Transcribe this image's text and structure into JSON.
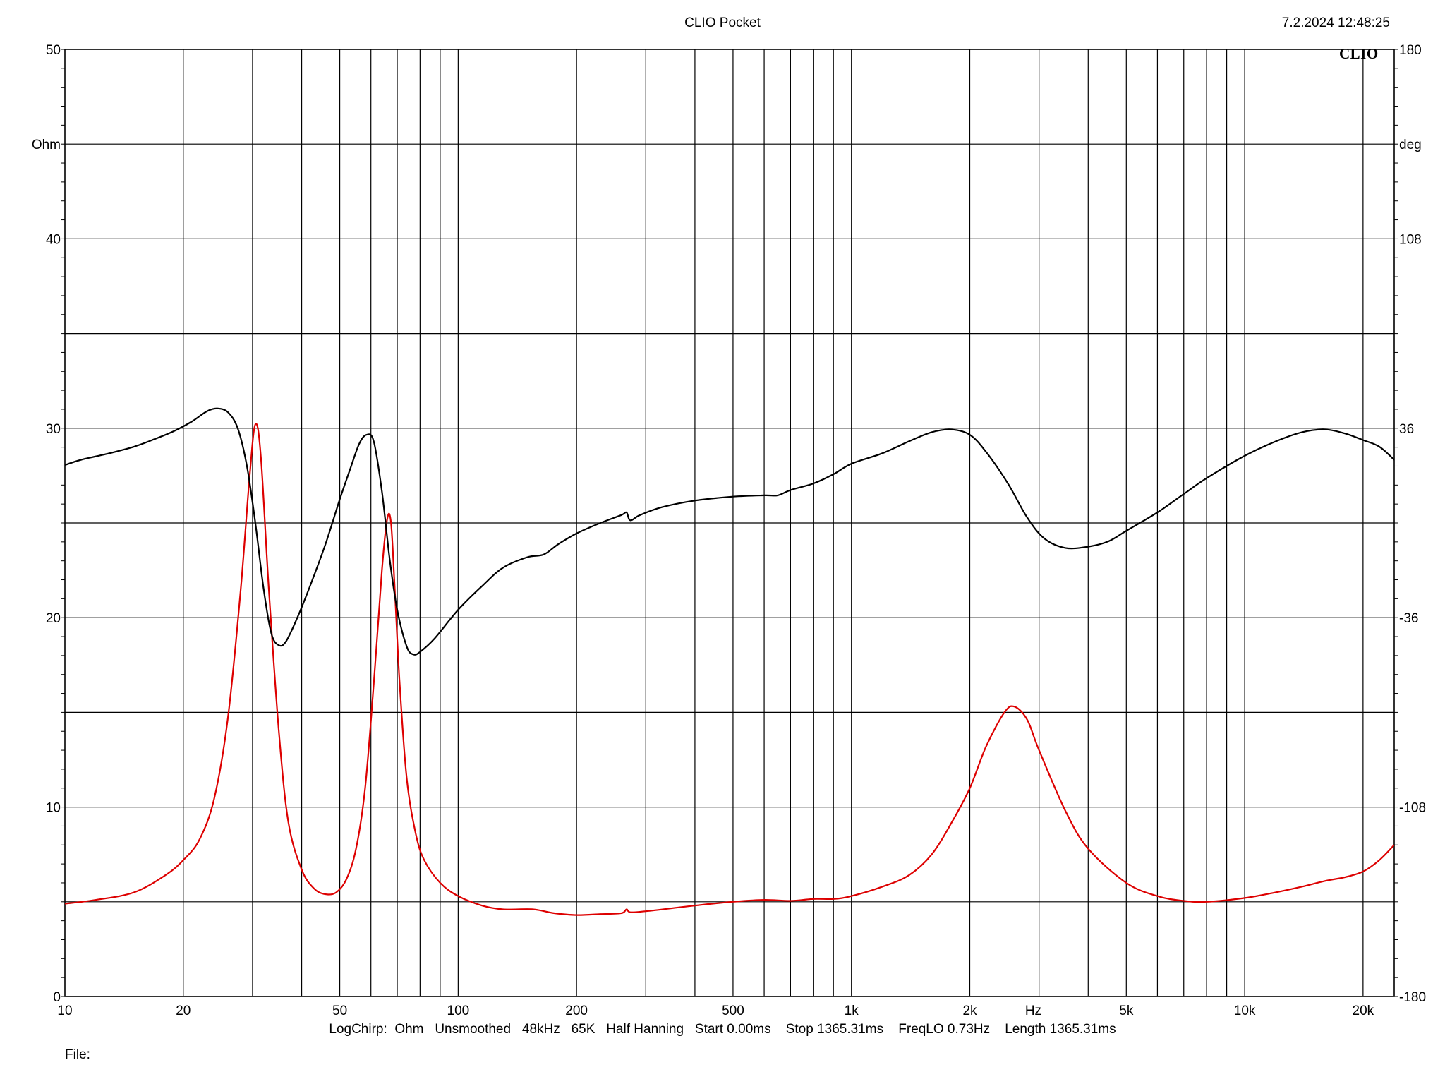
{
  "header": {
    "title": "CLIO Pocket",
    "timestamp": "7.2.2024 12:48:25"
  },
  "logo": {
    "text": "CLIO"
  },
  "footer": {
    "info": "LogChirp:  Ohm   Unsmoothed   48kHz   65K   Half Hanning   Start 0.00ms    Stop 1365.31ms    FreqLO 0.73Hz    Length 1365.31ms",
    "file_label": "File:"
  },
  "chart_data": {
    "type": "line",
    "xscale": "log",
    "xlim": [
      10,
      24000
    ],
    "xlabel": "Hz",
    "x_ticks": [
      {
        "value": 10,
        "label": "10"
      },
      {
        "value": 20,
        "label": "20"
      },
      {
        "value": 50,
        "label": "50"
      },
      {
        "value": 100,
        "label": "100"
      },
      {
        "value": 200,
        "label": "200"
      },
      {
        "value": 500,
        "label": "500"
      },
      {
        "value": 1000,
        "label": "1k"
      },
      {
        "value": 2000,
        "label": "2k"
      },
      {
        "value": 5000,
        "label": "5k"
      },
      {
        "value": 10000,
        "label": "10k"
      },
      {
        "value": 20000,
        "label": "20k"
      }
    ],
    "y_left": {
      "label": "Ohm",
      "lim": [
        0,
        50
      ],
      "ticks": [
        {
          "value": 0,
          "label": "0"
        },
        {
          "value": 10,
          "label": "10"
        },
        {
          "value": 20,
          "label": "20"
        },
        {
          "value": 30,
          "label": "30"
        },
        {
          "value": 40,
          "label": "40"
        },
        {
          "value": 50,
          "label": "50"
        }
      ]
    },
    "y_right": {
      "label": "deg",
      "lim": [
        -180,
        180
      ],
      "ticks": [
        {
          "value": -180,
          "label": "-180"
        },
        {
          "value": -108,
          "label": "-108"
        },
        {
          "value": -36,
          "label": "-36"
        },
        {
          "value": 36,
          "label": "36"
        },
        {
          "value": 108,
          "label": "108"
        },
        {
          "value": 180,
          "label": "180"
        }
      ]
    },
    "grid": true,
    "series": [
      {
        "axis": "left",
        "color": "#dd0000",
        "points": [
          [
            10,
            4.9
          ],
          [
            12,
            5.1
          ],
          [
            15,
            5.5
          ],
          [
            18,
            6.4
          ],
          [
            20,
            7.2
          ],
          [
            22,
            8.3
          ],
          [
            24,
            10.5
          ],
          [
            26,
            14.8
          ],
          [
            28,
            21.5
          ],
          [
            29.5,
            27.5
          ],
          [
            30.5,
            30.2
          ],
          [
            31.5,
            28.5
          ],
          [
            33,
            21.5
          ],
          [
            35,
            14
          ],
          [
            37,
            9.2
          ],
          [
            40,
            6.7
          ],
          [
            43,
            5.7
          ],
          [
            46,
            5.4
          ],
          [
            49,
            5.5
          ],
          [
            52,
            6.2
          ],
          [
            55,
            7.8
          ],
          [
            58,
            11
          ],
          [
            61,
            16.5
          ],
          [
            64,
            22.5
          ],
          [
            66,
            25.2
          ],
          [
            67.5,
            25
          ],
          [
            69,
            21.5
          ],
          [
            71,
            16.5
          ],
          [
            74,
            11.5
          ],
          [
            78,
            8.6
          ],
          [
            82,
            7.2
          ],
          [
            90,
            6
          ],
          [
            100,
            5.3
          ],
          [
            115,
            4.8
          ],
          [
            130,
            4.6
          ],
          [
            155,
            4.6
          ],
          [
            175,
            4.4
          ],
          [
            200,
            4.3
          ],
          [
            230,
            4.35
          ],
          [
            260,
            4.4
          ],
          [
            268,
            4.6
          ],
          [
            274,
            4.45
          ],
          [
            300,
            4.5
          ],
          [
            400,
            4.8
          ],
          [
            500,
            5.0
          ],
          [
            600,
            5.1
          ],
          [
            700,
            5.05
          ],
          [
            800,
            5.15
          ],
          [
            900,
            5.15
          ],
          [
            1000,
            5.3
          ],
          [
            1200,
            5.8
          ],
          [
            1400,
            6.4
          ],
          [
            1600,
            7.5
          ],
          [
            1800,
            9.2
          ],
          [
            2000,
            11.0
          ],
          [
            2200,
            13.2
          ],
          [
            2450,
            15.0
          ],
          [
            2600,
            15.3
          ],
          [
            2800,
            14.6
          ],
          [
            3000,
            13.0
          ],
          [
            3500,
            9.8
          ],
          [
            4000,
            7.8
          ],
          [
            5000,
            6.0
          ],
          [
            6000,
            5.3
          ],
          [
            7000,
            5.05
          ],
          [
            8000,
            5.0
          ],
          [
            10000,
            5.2
          ],
          [
            12000,
            5.5
          ],
          [
            14000,
            5.8
          ],
          [
            16000,
            6.1
          ],
          [
            18000,
            6.3
          ],
          [
            20000,
            6.6
          ],
          [
            22000,
            7.2
          ],
          [
            24000,
            8.0
          ]
        ]
      },
      {
        "axis": "right",
        "color": "#000000",
        "points": [
          [
            10,
            22
          ],
          [
            11,
            24
          ],
          [
            13,
            26.5
          ],
          [
            15,
            29
          ],
          [
            17,
            32
          ],
          [
            19,
            35
          ],
          [
            21,
            38.5
          ],
          [
            23,
            42.5
          ],
          [
            24.5,
            43.5
          ],
          [
            26,
            42
          ],
          [
            27.5,
            36
          ],
          [
            29,
            22
          ],
          [
            30.5,
            0
          ],
          [
            32,
            -25
          ],
          [
            33.5,
            -42
          ],
          [
            35,
            -46.5
          ],
          [
            36.5,
            -45
          ],
          [
            39,
            -36
          ],
          [
            42,
            -24
          ],
          [
            46,
            -8
          ],
          [
            50,
            9
          ],
          [
            53,
            20
          ],
          [
            56,
            30
          ],
          [
            58.5,
            33.5
          ],
          [
            61,
            31
          ],
          [
            64,
            12
          ],
          [
            67,
            -14
          ],
          [
            70,
            -33
          ],
          [
            74,
            -47
          ],
          [
            77,
            -50
          ],
          [
            80,
            -49
          ],
          [
            87,
            -44
          ],
          [
            100,
            -33
          ],
          [
            115,
            -24
          ],
          [
            130,
            -17
          ],
          [
            150,
            -13
          ],
          [
            165,
            -12
          ],
          [
            180,
            -8
          ],
          [
            200,
            -4
          ],
          [
            230,
            0
          ],
          [
            260,
            3
          ],
          [
            268,
            4
          ],
          [
            274,
            1
          ],
          [
            290,
            3
          ],
          [
            330,
            6
          ],
          [
            400,
            8.5
          ],
          [
            500,
            10
          ],
          [
            600,
            10.5
          ],
          [
            650,
            10.5
          ],
          [
            700,
            12.5
          ],
          [
            800,
            15
          ],
          [
            900,
            18.5
          ],
          [
            1000,
            22.5
          ],
          [
            1200,
            26.5
          ],
          [
            1400,
            31
          ],
          [
            1600,
            34.5
          ],
          [
            1800,
            35.5
          ],
          [
            2000,
            33.5
          ],
          [
            2200,
            27
          ],
          [
            2500,
            15
          ],
          [
            2800,
            2
          ],
          [
            3100,
            -6
          ],
          [
            3500,
            -9.5
          ],
          [
            4000,
            -9
          ],
          [
            4500,
            -7
          ],
          [
            5000,
            -3
          ],
          [
            6000,
            4
          ],
          [
            7000,
            11
          ],
          [
            8000,
            17
          ],
          [
            10000,
            25.5
          ],
          [
            12000,
            31
          ],
          [
            14000,
            34.5
          ],
          [
            16000,
            35.5
          ],
          [
            18000,
            34
          ],
          [
            20000,
            31.5
          ],
          [
            22000,
            29
          ],
          [
            24000,
            24
          ]
        ]
      }
    ]
  }
}
